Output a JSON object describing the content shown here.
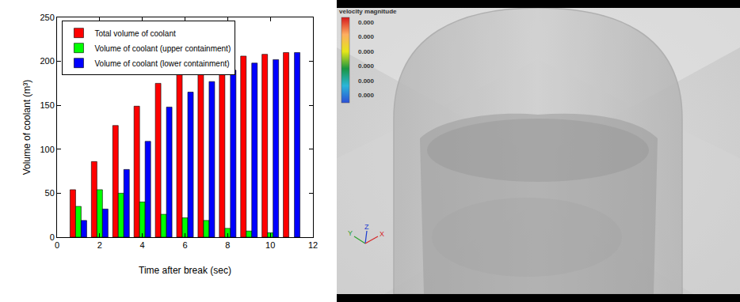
{
  "chart_data": {
    "type": "bar",
    "x": [
      1,
      2,
      3,
      4,
      5,
      6,
      7,
      8,
      9,
      10,
      11
    ],
    "series": [
      {
        "name": "Total volume of coolant",
        "color": "#ff0000",
        "values": [
          54,
          86,
          127,
          149,
          175,
          187,
          196,
          201,
          206,
          208,
          210
        ]
      },
      {
        "name": "Volume of coolant (upper containment)",
        "color": "#00ff00",
        "values": [
          35,
          54,
          50,
          40,
          26,
          22,
          19,
          10,
          7,
          5,
          null
        ]
      },
      {
        "name": "Volume of coolant (lower containment)",
        "color": "#0000ff",
        "values": [
          19,
          32,
          77,
          109,
          148,
          165,
          177,
          190,
          198,
          202,
          210
        ]
      }
    ],
    "x_label": "Time after break (sec)",
    "y_label": "Volume of coolant (m³)",
    "xlim": [
      0,
      12
    ],
    "xticks": [
      0,
      2,
      4,
      6,
      8,
      10,
      12
    ],
    "ylim": [
      0,
      250
    ],
    "yticks": [
      0,
      50,
      100,
      150,
      200,
      250
    ],
    "grid": false,
    "legend": "upper left"
  },
  "image_panel": {
    "colorbar_title": "velocity magnitude",
    "colorbar_labels": [
      "0.000",
      "0.000",
      "0.000",
      "0.000",
      "0.000",
      "0.000"
    ],
    "axis_labels": {
      "y": "Y",
      "z": "Z",
      "x": "X"
    }
  }
}
